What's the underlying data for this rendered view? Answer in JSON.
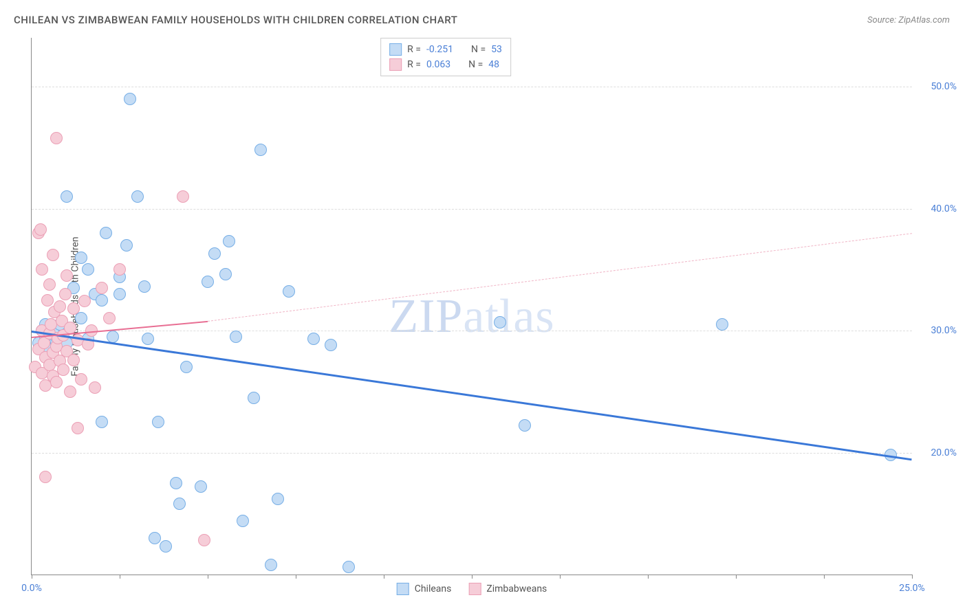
{
  "title": "CHILEAN VS ZIMBABWEAN FAMILY HOUSEHOLDS WITH CHILDREN CORRELATION CHART",
  "source_label": "Source: ZipAtlas.com",
  "y_axis_label": "Family Households with Children",
  "watermark": "ZIPatlas",
  "chart": {
    "type": "scatter",
    "xlim": [
      0,
      25
    ],
    "ylim": [
      10,
      54
    ],
    "x_ticks": [
      0,
      2.5,
      5,
      7.5,
      10,
      12.5,
      15,
      17.5,
      20,
      22.5,
      25
    ],
    "x_tick_labels": {
      "0": "0.0%",
      "25": "25.0%"
    },
    "y_gridlines": [
      20,
      30,
      40,
      50
    ],
    "y_tick_labels": {
      "20": "20.0%",
      "30": "30.0%",
      "40": "40.0%",
      "50": "50.0%"
    },
    "background_color": "#ffffff",
    "grid_color": "#dddddd",
    "axis_color": "#888888",
    "tick_label_color": "#4a7fd6",
    "point_radius": 9,
    "series": [
      {
        "name": "Chileans",
        "fill": "#c4dcf5",
        "stroke": "#76aee6",
        "r": "-0.251",
        "n": "53",
        "trend": {
          "x1": 0,
          "y1": 30,
          "x2": 25,
          "y2": 19.5,
          "color": "#3a78d8",
          "width": 2.5
        },
        "points": [
          [
            0.2,
            29
          ],
          [
            0.3,
            30
          ],
          [
            0.4,
            29.5
          ],
          [
            0.4,
            30.5
          ],
          [
            0.5,
            28.5
          ],
          [
            0.6,
            30
          ],
          [
            0.7,
            29
          ],
          [
            0.8,
            30.5
          ],
          [
            1.0,
            29
          ],
          [
            1.1,
            30.2
          ],
          [
            1.0,
            41
          ],
          [
            1.2,
            33.5
          ],
          [
            1.4,
            31
          ],
          [
            1.4,
            36
          ],
          [
            1.6,
            29.3
          ],
          [
            1.6,
            35
          ],
          [
            1.8,
            33
          ],
          [
            2.0,
            32.5
          ],
          [
            2.0,
            22.5
          ],
          [
            2.1,
            38
          ],
          [
            2.3,
            29.5
          ],
          [
            2.5,
            33
          ],
          [
            2.5,
            34.4
          ],
          [
            2.7,
            37
          ],
          [
            3.0,
            41
          ],
          [
            2.8,
            49
          ],
          [
            3.2,
            33.6
          ],
          [
            3.3,
            29.3
          ],
          [
            3.5,
            13
          ],
          [
            3.6,
            22.5
          ],
          [
            3.8,
            12.3
          ],
          [
            4.1,
            17.5
          ],
          [
            4.2,
            15.8
          ],
          [
            4.4,
            27
          ],
          [
            4.8,
            17.2
          ],
          [
            5.0,
            34
          ],
          [
            5.2,
            36.3
          ],
          [
            5.5,
            34.6
          ],
          [
            5.6,
            37.3
          ],
          [
            5.8,
            29.5
          ],
          [
            6.0,
            14.4
          ],
          [
            6.3,
            24.5
          ],
          [
            6.5,
            44.8
          ],
          [
            6.8,
            10.8
          ],
          [
            7.0,
            16.2
          ],
          [
            7.3,
            33.2
          ],
          [
            8.0,
            29.3
          ],
          [
            8.5,
            28.8
          ],
          [
            9.0,
            10.6
          ],
          [
            13.3,
            30.7
          ],
          [
            14.0,
            22.2
          ],
          [
            19.6,
            30.5
          ],
          [
            24.4,
            19.8
          ]
        ]
      },
      {
        "name": "Zimbabweans",
        "fill": "#f6cdd8",
        "stroke": "#eb9fb5",
        "r": "0.063",
        "n": "48",
        "trend_solid": {
          "x1": 0,
          "y1": 29.5,
          "x2": 5,
          "y2": 30.8,
          "color": "#e86e93",
          "width": 2
        },
        "trend_dash": {
          "x1": 5,
          "y1": 30.8,
          "x2": 25,
          "y2": 38.0,
          "color": "#f0b4c5",
          "width": 1
        },
        "points": [
          [
            0.1,
            27
          ],
          [
            0.2,
            28.5
          ],
          [
            0.2,
            38
          ],
          [
            0.25,
            38.3
          ],
          [
            0.3,
            26.5
          ],
          [
            0.3,
            30
          ],
          [
            0.3,
            35
          ],
          [
            0.35,
            29
          ],
          [
            0.4,
            25.5
          ],
          [
            0.4,
            27.8
          ],
          [
            0.4,
            18
          ],
          [
            0.45,
            32.5
          ],
          [
            0.5,
            27.2
          ],
          [
            0.5,
            29.8
          ],
          [
            0.5,
            33.8
          ],
          [
            0.55,
            30.5
          ],
          [
            0.6,
            26.3
          ],
          [
            0.6,
            28.2
          ],
          [
            0.6,
            36.2
          ],
          [
            0.65,
            31.5
          ],
          [
            0.7,
            25.8
          ],
          [
            0.7,
            28.7
          ],
          [
            0.7,
            45.8
          ],
          [
            0.75,
            29.4
          ],
          [
            0.8,
            27.5
          ],
          [
            0.8,
            32
          ],
          [
            0.85,
            30.8
          ],
          [
            0.9,
            26.8
          ],
          [
            0.9,
            29.6
          ],
          [
            0.95,
            33
          ],
          [
            1.0,
            28.3
          ],
          [
            1.0,
            34.5
          ],
          [
            1.1,
            25
          ],
          [
            1.1,
            30.2
          ],
          [
            1.2,
            27.6
          ],
          [
            1.2,
            31.8
          ],
          [
            1.3,
            29.2
          ],
          [
            1.3,
            22
          ],
          [
            1.4,
            26
          ],
          [
            1.5,
            32.4
          ],
          [
            1.6,
            28.9
          ],
          [
            1.7,
            30
          ],
          [
            1.8,
            25.3
          ],
          [
            2.0,
            33.5
          ],
          [
            2.2,
            31
          ],
          [
            2.5,
            35
          ],
          [
            4.3,
            41
          ],
          [
            4.9,
            12.8
          ]
        ]
      }
    ]
  },
  "legend_top": [
    {
      "swatch_fill": "#c4dcf5",
      "swatch_stroke": "#76aee6",
      "r_label": "R =",
      "r_val": "-0.251",
      "n_label": "N =",
      "n_val": "53"
    },
    {
      "swatch_fill": "#f6cdd8",
      "swatch_stroke": "#eb9fb5",
      "r_label": "R =",
      "r_val": "0.063",
      "n_label": "N =",
      "n_val": "48"
    }
  ],
  "legend_bottom": [
    {
      "swatch_fill": "#c4dcf5",
      "swatch_stroke": "#76aee6",
      "label": "Chileans"
    },
    {
      "swatch_fill": "#f6cdd8",
      "swatch_stroke": "#eb9fb5",
      "label": "Zimbabweans"
    }
  ]
}
